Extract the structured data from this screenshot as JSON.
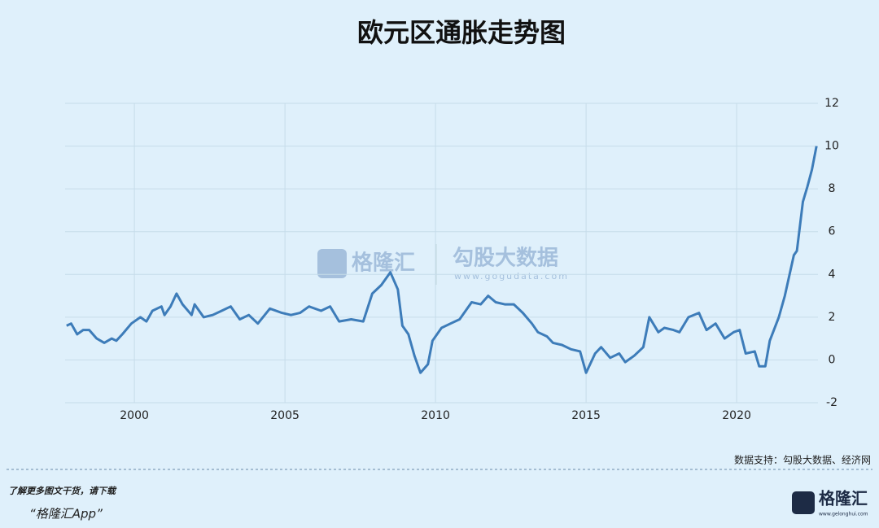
{
  "chart_data": {
    "type": "line",
    "title": "欧元区通胀走势图",
    "x": [
      1997.75,
      1997.9,
      1998.1,
      1998.3,
      1998.5,
      1998.75,
      1999.0,
      1999.25,
      1999.4,
      1999.6,
      1999.9,
      2000.2,
      2000.4,
      2000.6,
      2000.9,
      2001.0,
      2001.2,
      2001.4,
      2001.6,
      2001.9,
      2002.0,
      2002.3,
      2002.6,
      2002.9,
      2003.2,
      2003.5,
      2003.8,
      2004.1,
      2004.5,
      2004.9,
      2005.2,
      2005.5,
      2005.8,
      2006.2,
      2006.5,
      2006.8,
      2007.2,
      2007.6,
      2007.9,
      2008.2,
      2008.5,
      2008.75,
      2008.9,
      2009.1,
      2009.3,
      2009.5,
      2009.75,
      2009.9,
      2010.2,
      2010.5,
      2010.8,
      2011.2,
      2011.5,
      2011.75,
      2012.0,
      2012.3,
      2012.6,
      2012.9,
      2013.2,
      2013.4,
      2013.7,
      2013.9,
      2014.2,
      2014.5,
      2014.8,
      2015.0,
      2015.3,
      2015.5,
      2015.8,
      2016.1,
      2016.3,
      2016.6,
      2016.9,
      2017.1,
      2017.4,
      2017.6,
      2017.9,
      2018.1,
      2018.4,
      2018.75,
      2019.0,
      2019.3,
      2019.6,
      2019.9,
      2020.1,
      2020.3,
      2020.6,
      2020.75,
      2020.95,
      2021.1,
      2021.4,
      2021.6,
      2021.9,
      2022.0,
      2022.2,
      2022.35,
      2022.5,
      2022.65
    ],
    "series": [
      {
        "color": "#3d7cb9",
        "values": [
          1.6,
          1.7,
          1.2,
          1.4,
          1.4,
          1.0,
          0.8,
          1.0,
          0.9,
          1.2,
          1.7,
          2.0,
          1.8,
          2.3,
          2.5,
          2.1,
          2.5,
          3.1,
          2.6,
          2.1,
          2.6,
          2.0,
          2.1,
          2.3,
          2.5,
          1.9,
          2.1,
          1.7,
          2.4,
          2.2,
          2.1,
          2.2,
          2.5,
          2.3,
          2.5,
          1.8,
          1.9,
          1.8,
          3.1,
          3.5,
          4.1,
          3.3,
          1.6,
          1.2,
          0.2,
          -0.6,
          -0.2,
          0.9,
          1.5,
          1.7,
          1.9,
          2.7,
          2.6,
          3.0,
          2.7,
          2.6,
          2.6,
          2.2,
          1.7,
          1.3,
          1.1,
          0.8,
          0.7,
          0.5,
          0.4,
          -0.6,
          0.3,
          0.6,
          0.1,
          0.3,
          -0.1,
          0.2,
          0.6,
          2.0,
          1.3,
          1.5,
          1.4,
          1.3,
          2.0,
          2.2,
          1.4,
          1.7,
          1.0,
          1.3,
          1.4,
          0.3,
          0.4,
          -0.3,
          -0.3,
          0.9,
          2.0,
          3.0,
          4.9,
          5.1,
          7.4,
          8.1,
          8.9,
          10.0
        ]
      }
    ],
    "xlim": [
      1997.7,
      2022.7
    ],
    "xticks": [
      2000,
      2005,
      2010,
      2015,
      2020
    ],
    "ylim": [
      -2,
      12
    ],
    "yticks": [
      -2,
      0,
      2,
      4,
      6,
      8,
      10,
      12
    ],
    "grid": true,
    "source": "数据支持：勾股大数据、经济网"
  },
  "watermark": {
    "brand": "格隆汇",
    "data_brand": "勾股大数据",
    "url": "www.gogudata.com"
  },
  "footer": {
    "line1": "了解更多图文干货，请下载",
    "line2": "“格隆汇App”",
    "logo": "格隆汇",
    "logo_url": "www.gelonghui.com"
  }
}
